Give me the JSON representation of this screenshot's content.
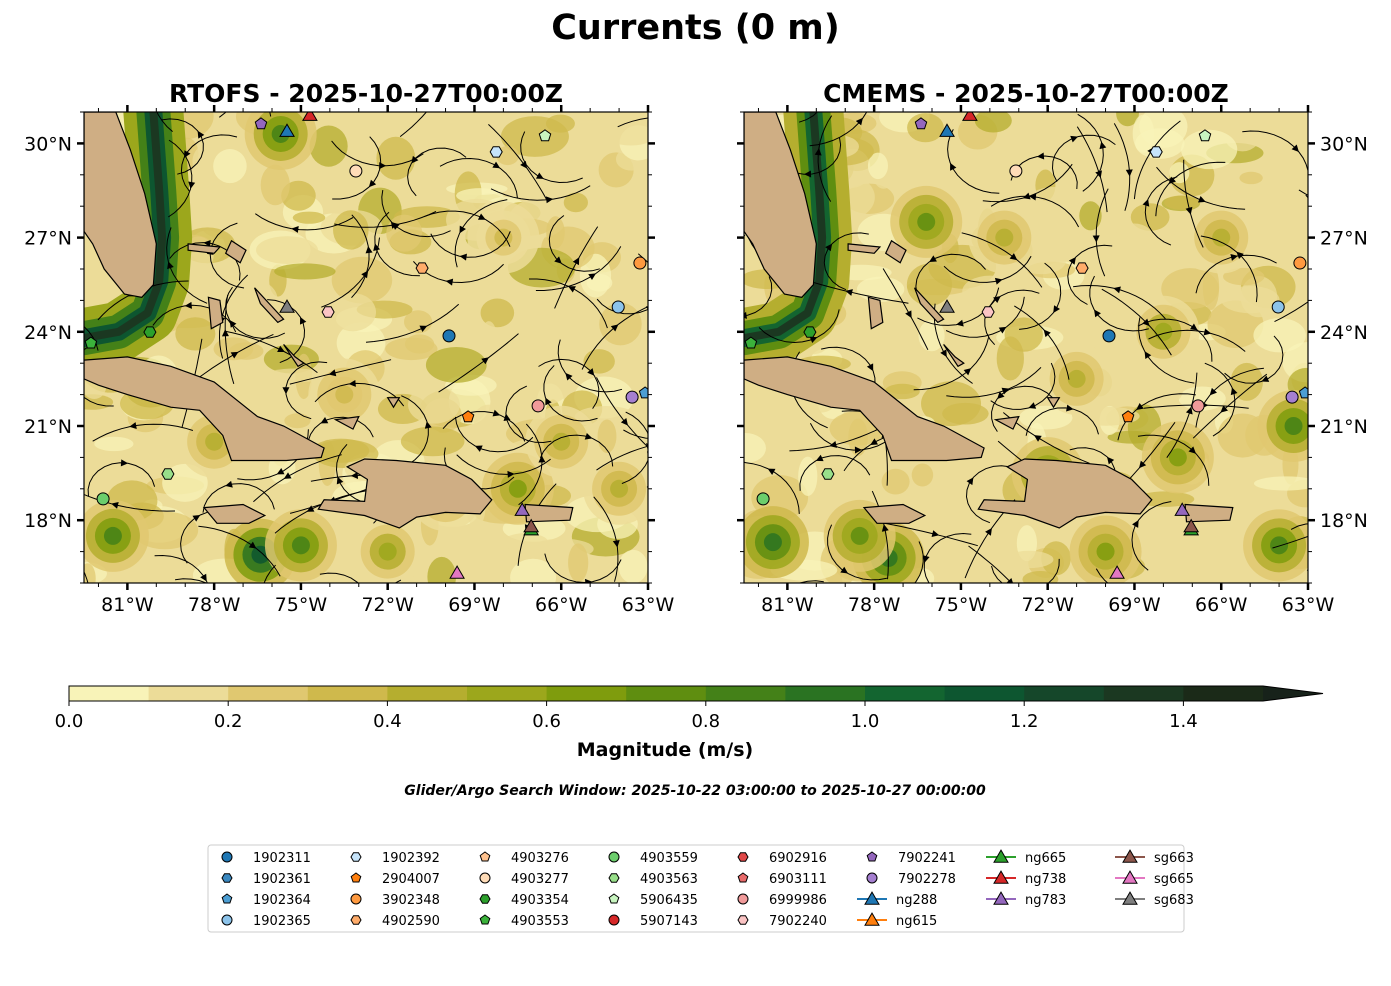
{
  "figure": {
    "title": "Currents (0 m)"
  },
  "panels": [
    {
      "title": "RTOFS - 2025-10-27T00:00Z",
      "ylabel_side": "left"
    },
    {
      "title": "CMEMS - 2025-10-27T00:00Z",
      "ylabel_side": "right"
    }
  ],
  "map_extent": {
    "lon": [
      -82.5,
      -63
    ],
    "lat": [
      16,
      31
    ]
  },
  "lon_ticks": [
    {
      "v": -81,
      "label": "81°W"
    },
    {
      "v": -78,
      "label": "78°W"
    },
    {
      "v": -75,
      "label": "75°W"
    },
    {
      "v": -72,
      "label": "72°W"
    },
    {
      "v": -69,
      "label": "69°W"
    },
    {
      "v": -66,
      "label": "66°W"
    },
    {
      "v": -63,
      "label": "63°W"
    }
  ],
  "lat_ticks": [
    {
      "v": 18,
      "label": "18°N"
    },
    {
      "v": 21,
      "label": "21°N"
    },
    {
      "v": 24,
      "label": "24°N"
    },
    {
      "v": 27,
      "label": "27°N"
    },
    {
      "v": 30,
      "label": "30°N"
    }
  ],
  "colorbar": {
    "label": "Magnitude (m/s)",
    "bounds": [
      0,
      1.5
    ],
    "step": 0.1,
    "extend": "max",
    "ticks": [
      "0.0",
      "0.2",
      "0.4",
      "0.6",
      "0.8",
      "1.0",
      "1.2",
      "1.4"
    ],
    "colors": [
      "#f8f3b8",
      "#ecdc98",
      "#e0c870",
      "#cfb94c",
      "#b5ae2f",
      "#9ca71c",
      "#7f9c0d",
      "#5f8e10",
      "#448118",
      "#2a7322",
      "#136530",
      "#0d5630",
      "#15472a",
      "#1b3821",
      "#1b2a18"
    ],
    "extend_color": "#17221a"
  },
  "search_window": "Glider/Argo Search Window: 2025-10-22 03:00:00 to 2025-10-27 00:00:00",
  "platforms": [
    {
      "id": "1902311",
      "shape": "circle",
      "color": "#1f77b4",
      "lon": -69.88,
      "lat": 23.87
    },
    {
      "id": "1902361",
      "shape": "hexagon",
      "color": "#3a88c0",
      "lon": null,
      "lat": null
    },
    {
      "id": "1902364",
      "shape": "pentagon",
      "color": "#4c9ed3",
      "lon": -63.1,
      "lat": 22.05
    },
    {
      "id": "1902365",
      "shape": "circle",
      "color": "#8cc3ea",
      "lon": -64.03,
      "lat": 24.79
    },
    {
      "id": "1902392",
      "shape": "hexagon",
      "color": "#c6e4fa",
      "lon": -68.25,
      "lat": 29.73
    },
    {
      "id": "2904007",
      "shape": "pentagon",
      "color": "#ff7f0e",
      "lon": -69.22,
      "lat": 21.29
    },
    {
      "id": "3902348",
      "shape": "circle",
      "color": "#ff9a40",
      "lon": -63.28,
      "lat": 26.19
    },
    {
      "id": "4902590",
      "shape": "hexagon",
      "color": "#ffac6a",
      "lon": -70.81,
      "lat": 26.03
    },
    {
      "id": "4903276",
      "shape": "pentagon",
      "color": "#ffc28f",
      "lon": null,
      "lat": null
    },
    {
      "id": "4903277",
      "shape": "circle",
      "color": "#ffdcb8",
      "lon": -73.1,
      "lat": 29.12
    },
    {
      "id": "4903354",
      "shape": "hexagon",
      "color": "#2ca02c",
      "lon": -80.22,
      "lat": 23.99
    },
    {
      "id": "4903553",
      "shape": "pentagon",
      "color": "#3bb23b",
      "lon": -82.26,
      "lat": 23.64
    },
    {
      "id": "4903559",
      "shape": "circle",
      "color": "#6cce6c",
      "lon": -81.84,
      "lat": 18.68
    },
    {
      "id": "4903563",
      "shape": "hexagon",
      "color": "#98df8a",
      "lon": -79.6,
      "lat": 19.47
    },
    {
      "id": "5906435",
      "shape": "pentagon",
      "color": "#c8f5c0",
      "lon": -66.56,
      "lat": 30.24
    },
    {
      "id": "5907143",
      "shape": "circle",
      "color": "#d62728",
      "lon": null,
      "lat": null
    },
    {
      "id": "6902916",
      "shape": "hexagon",
      "color": "#e04848",
      "lon": null,
      "lat": null
    },
    {
      "id": "6903111",
      "shape": "pentagon",
      "color": "#e86a6a",
      "lon": null,
      "lat": null
    },
    {
      "id": "6999986",
      "shape": "circle",
      "color": "#f09a9a",
      "lon": -66.8,
      "lat": 21.64
    },
    {
      "id": "7902240",
      "shape": "hexagon",
      "color": "#fbc4c4",
      "lon": -74.06,
      "lat": 24.63
    },
    {
      "id": "7902241",
      "shape": "pentagon",
      "color": "#9467bd",
      "lon": -76.38,
      "lat": 30.62
    },
    {
      "id": "7902278",
      "shape": "circle",
      "color": "#a57fd0",
      "lon": -63.55,
      "lat": 21.92
    },
    {
      "id": "ng288",
      "shape": "triangle",
      "color": "#1f77b4",
      "lon": -75.48,
      "lat": 30.39
    },
    {
      "id": "ng615",
      "shape": "triangle",
      "color": "#ff7f0e",
      "lon": null,
      "lat": null
    },
    {
      "id": "ng665",
      "shape": "triangle",
      "color": "#2ca02c",
      "lon": -67.04,
      "lat": 17.7
    },
    {
      "id": "ng738",
      "shape": "triangle",
      "color": "#d62728",
      "lon": -74.69,
      "lat": 30.9
    },
    {
      "id": "ng783",
      "shape": "triangle",
      "color": "#9467bd",
      "lon": -67.35,
      "lat": 18.32
    },
    {
      "id": "sg663",
      "shape": "triangle",
      "color": "#8c564b",
      "lon": -67.04,
      "lat": 17.8
    },
    {
      "id": "sg665",
      "shape": "triangle",
      "color": "#e377c2",
      "lon": -69.6,
      "lat": 16.32
    },
    {
      "id": "sg683",
      "shape": "triangle",
      "color": "#7f7f7f",
      "lon": -75.48,
      "lat": 24.79
    }
  ]
}
